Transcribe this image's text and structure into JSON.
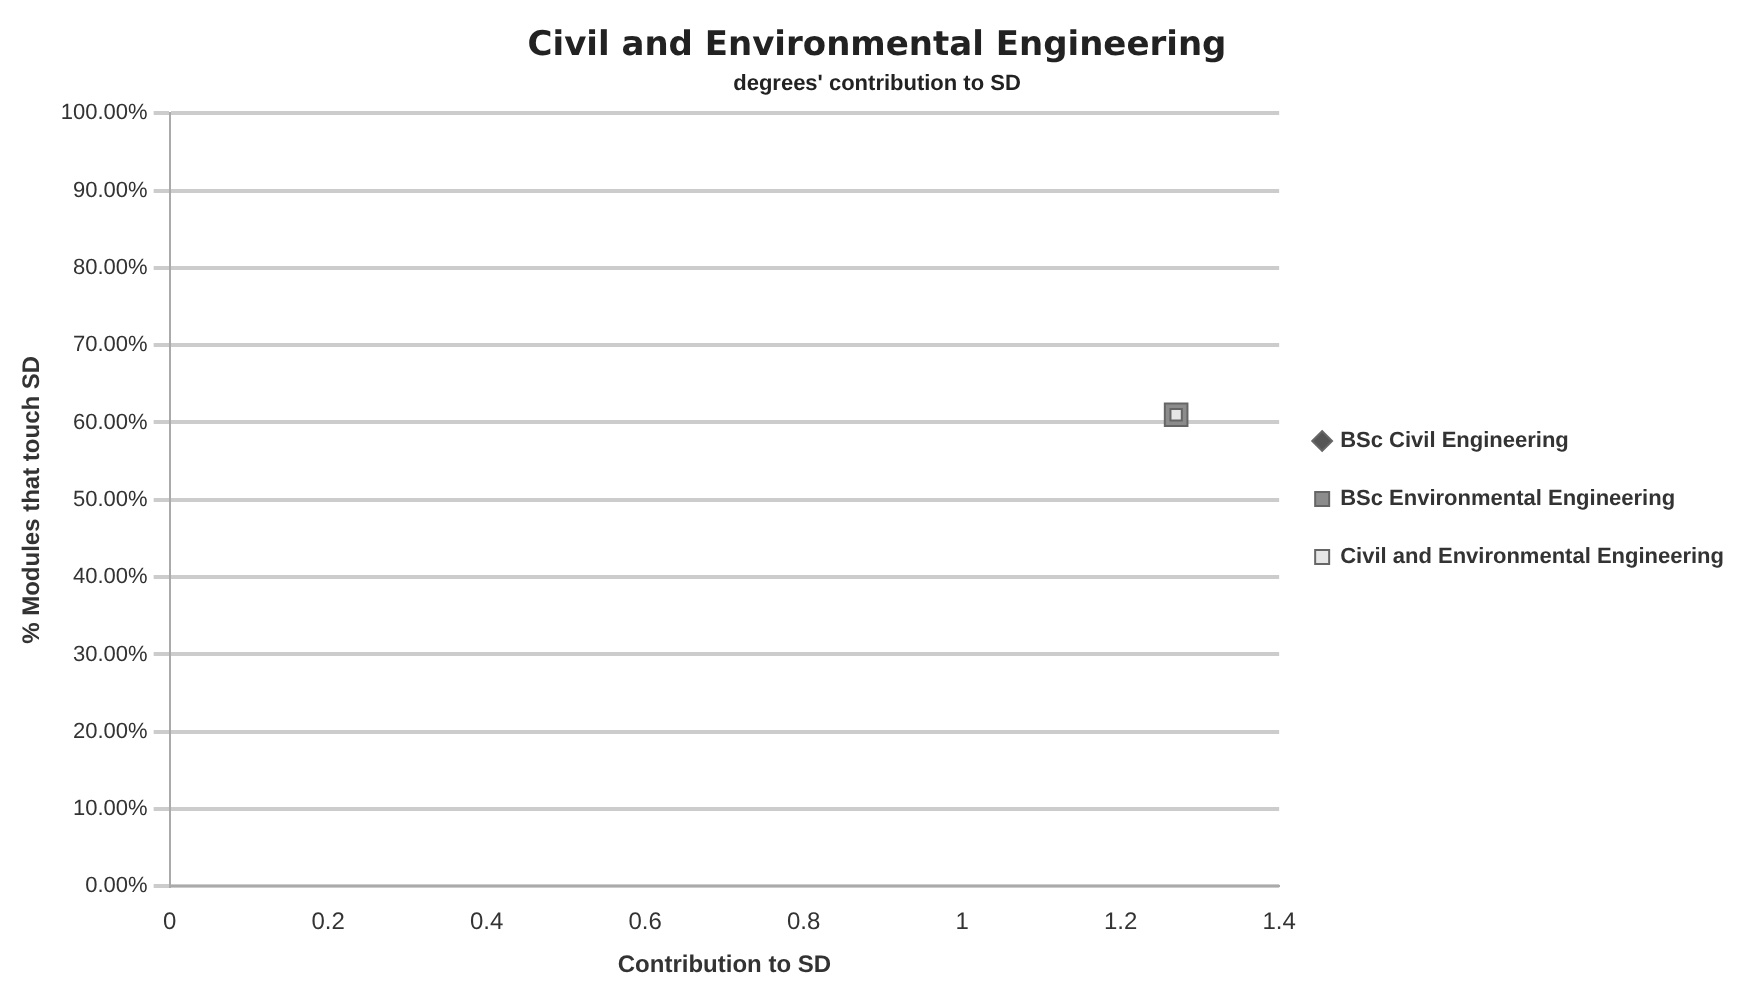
{
  "chart_data": {
    "type": "scatter",
    "title": "Civil and Environmental Engineering",
    "subtitle": "degrees' contribution to SD",
    "xlabel": "Contribution to SD",
    "ylabel": "% Modules that touch SD",
    "series": [
      {
        "name": "BSc Civil Engineering",
        "color": "#555555",
        "marker": "diamond",
        "x": [
          null
        ],
        "values": [
          null
        ]
      },
      {
        "name": "BSc Environmental Engineering",
        "color": "#8c8c8c",
        "marker": "square",
        "x": [
          1.27
        ],
        "values": [
          0.61
        ]
      },
      {
        "name": "Civil and Environmental Engineering",
        "color": "#e6e6e6",
        "marker": "square",
        "x": [
          1.27
        ],
        "values": [
          0.61
        ]
      }
    ],
    "xlim": [
      0,
      1.4
    ],
    "xticks": [
      0,
      0.2,
      0.4,
      0.6,
      0.8,
      1,
      1.2,
      1.4
    ],
    "ylim": [
      0,
      1
    ],
    "yticks": [
      {
        "value": 0,
        "label": "0.00%"
      },
      {
        "value": 0.1,
        "label": "10.00%"
      },
      {
        "value": 0.2,
        "label": "20.00%"
      },
      {
        "value": 0.3,
        "label": "30.00%"
      },
      {
        "value": 0.4,
        "label": "40.00%"
      },
      {
        "value": 0.5,
        "label": "50.00%"
      },
      {
        "value": 0.6,
        "label": "60.00%"
      },
      {
        "value": 0.7,
        "label": "70.00%"
      },
      {
        "value": 0.8,
        "label": "80.00%"
      },
      {
        "value": 0.9,
        "label": "90.00%"
      },
      {
        "value": 1,
        "label": "100.00%"
      }
    ],
    "grid": "y",
    "legend": "right"
  }
}
